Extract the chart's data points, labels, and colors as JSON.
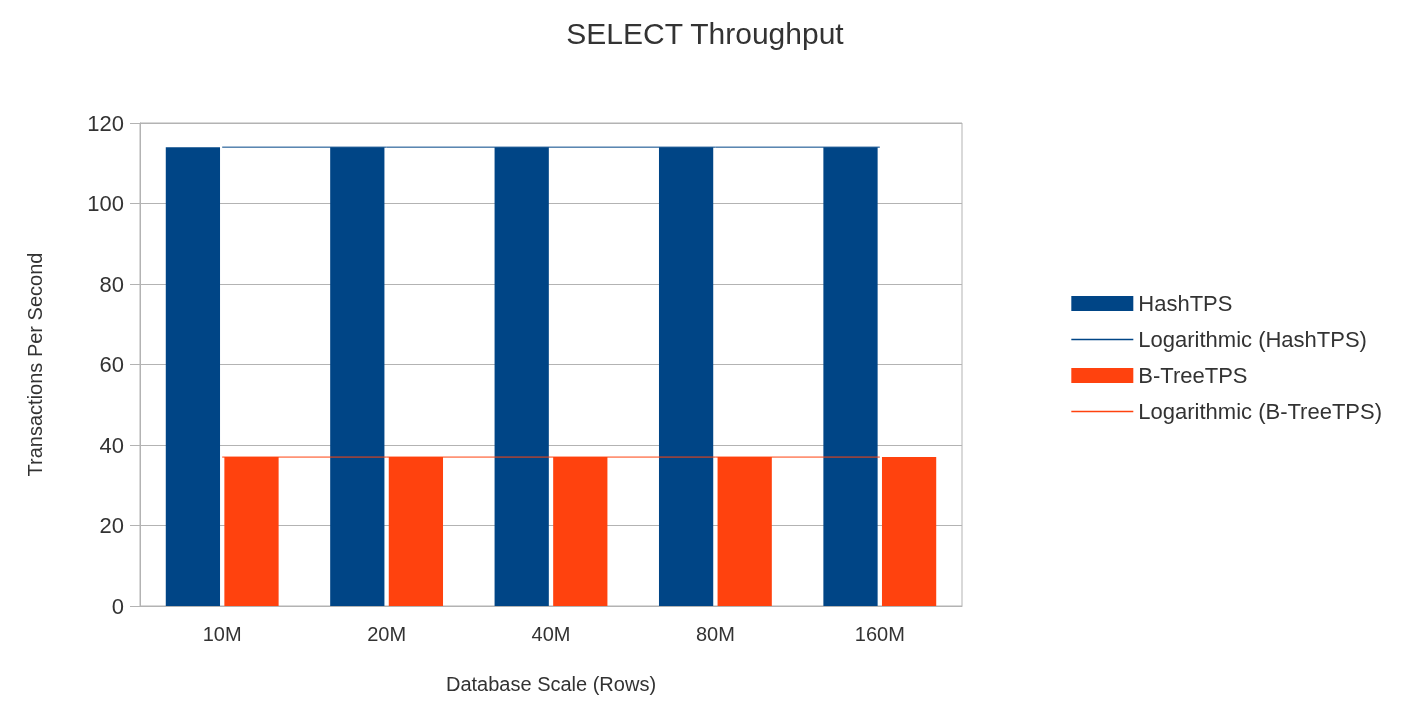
{
  "chart_data": {
    "type": "bar",
    "title": "SELECT Throughput",
    "xlabel": "Database Scale (Rows)",
    "ylabel": "Transactions Per Second",
    "categories": [
      "10M",
      "20M",
      "40M",
      "80M",
      "160M"
    ],
    "series": [
      {
        "name": "HashTPS",
        "color": "#004586",
        "values": [
          114,
          114,
          114,
          114,
          114
        ]
      },
      {
        "name": "Logarithmic (HashTPS)",
        "type": "line",
        "color": "#004586",
        "values": [
          114,
          114,
          114,
          114,
          114
        ]
      },
      {
        "name": "B-TreeTPS",
        "color": "#ff420e",
        "values": [
          37,
          37,
          37,
          37,
          37
        ]
      },
      {
        "name": "Logarithmic (B-TreeTPS)",
        "type": "line",
        "color": "#ff420e",
        "values": [
          37,
          37,
          37,
          37,
          37
        ]
      }
    ],
    "ylim": [
      0,
      120
    ],
    "yticks": [
      0,
      20,
      40,
      60,
      80,
      100,
      120
    ],
    "grid": "y",
    "legend": "right",
    "marker": "none",
    "line_style": "solid"
  }
}
